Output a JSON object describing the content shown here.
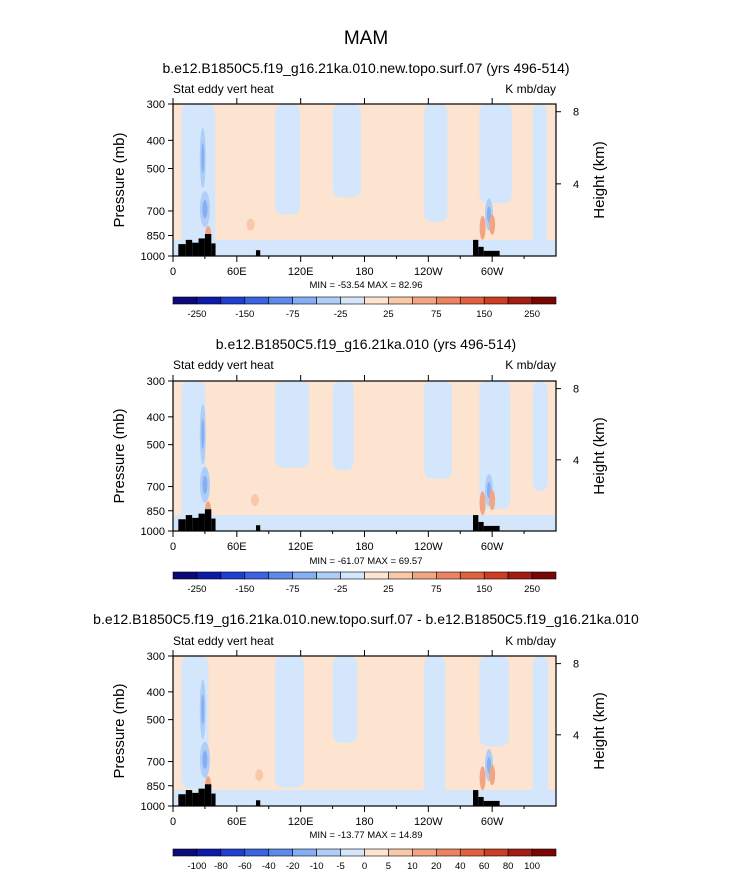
{
  "title": "MAM",
  "chart_data": [
    {
      "type": "heatmap",
      "title": "b.e12.B1850C5.f19_g16.21ka.010.new.topo.surf.07 (yrs 496-514)",
      "left_label": "Stat eddy vert heat",
      "right_label": "K mb/day",
      "ylabel": "Pressure (mb)",
      "ylabel_right": "Height (km)",
      "x_ticks": [
        "0",
        "60E",
        "120E",
        "180",
        "120W",
        "60W"
      ],
      "x_tick_lons": [
        0,
        60,
        120,
        180,
        240,
        300
      ],
      "x_range": [
        0,
        360
      ],
      "y_ticks": [
        "300",
        "400",
        "500",
        "700",
        "850",
        "1000"
      ],
      "y_tick_values": [
        300,
        400,
        500,
        700,
        850,
        1000
      ],
      "y_range": [
        300,
        1000
      ],
      "y_scale": "log",
      "height_ticks": [
        "8",
        "4"
      ],
      "height_tick_km": [
        8,
        4
      ],
      "stats": "MIN = -53.54  MAX =  82.96",
      "min": -53.54,
      "max": 82.96,
      "colorbar_labels": [
        "-250",
        "-150",
        "-75",
        "-25",
        "25",
        "75",
        "150",
        "250"
      ],
      "colorbar_levels": [
        -300,
        -250,
        -200,
        -150,
        -100,
        -75,
        -50,
        -25,
        0,
        25,
        50,
        75,
        100,
        150,
        200,
        250,
        300
      ]
    },
    {
      "type": "heatmap",
      "title": "b.e12.B1850C5.f19_g16.21ka.010 (yrs 496-514)",
      "left_label": "Stat eddy vert heat",
      "right_label": "K mb/day",
      "ylabel": "Pressure (mb)",
      "ylabel_right": "Height (km)",
      "x_ticks": [
        "0",
        "60E",
        "120E",
        "180",
        "120W",
        "60W"
      ],
      "x_tick_lons": [
        0,
        60,
        120,
        180,
        240,
        300
      ],
      "x_range": [
        0,
        360
      ],
      "y_ticks": [
        "300",
        "400",
        "500",
        "700",
        "850",
        "1000"
      ],
      "y_tick_values": [
        300,
        400,
        500,
        700,
        850,
        1000
      ],
      "y_range": [
        300,
        1000
      ],
      "y_scale": "log",
      "height_ticks": [
        "8",
        "4"
      ],
      "height_tick_km": [
        8,
        4
      ],
      "stats": "MIN = -61.07  MAX =  69.57",
      "min": -61.07,
      "max": 69.57,
      "colorbar_labels": [
        "-250",
        "-150",
        "-75",
        "-25",
        "25",
        "75",
        "150",
        "250"
      ],
      "colorbar_levels": [
        -300,
        -250,
        -200,
        -150,
        -100,
        -75,
        -50,
        -25,
        0,
        25,
        50,
        75,
        100,
        150,
        200,
        250,
        300
      ]
    },
    {
      "type": "heatmap",
      "title": "b.e12.B1850C5.f19_g16.21ka.010.new.topo.surf.07 - b.e12.B1850C5.f19_g16.21ka.010",
      "left_label": "Stat eddy vert heat",
      "right_label": "K mb/day",
      "ylabel": "Pressure (mb)",
      "ylabel_right": "Height (km)",
      "x_ticks": [
        "0",
        "60E",
        "120E",
        "180",
        "120W",
        "60W"
      ],
      "x_tick_lons": [
        0,
        60,
        120,
        180,
        240,
        300
      ],
      "x_range": [
        0,
        360
      ],
      "y_ticks": [
        "300",
        "400",
        "500",
        "700",
        "850",
        "1000"
      ],
      "y_tick_values": [
        300,
        400,
        500,
        700,
        850,
        1000
      ],
      "y_range": [
        300,
        1000
      ],
      "y_scale": "log",
      "height_ticks": [
        "8",
        "4"
      ],
      "height_tick_km": [
        8,
        4
      ],
      "stats": "MIN = -13.77  MAX =  14.89",
      "min": -13.77,
      "max": 14.89,
      "colorbar_labels": [
        "-100",
        "-80",
        "-60",
        "-40",
        "-20",
        "-10",
        "-5",
        "0",
        "5",
        "10",
        "20",
        "40",
        "60",
        "80",
        "100"
      ],
      "colorbar_levels": [
        -120,
        -100,
        -80,
        -60,
        -40,
        -20,
        -10,
        -5,
        0,
        5,
        10,
        20,
        40,
        60,
        80,
        100,
        120
      ]
    }
  ],
  "colors": {
    "neg": [
      "#0a0a7a",
      "#0d1ca8",
      "#1f3fd0",
      "#3a63e0",
      "#5d89ea",
      "#86aef2",
      "#aecdf7",
      "#d3e6fb"
    ],
    "pos": [
      "#fde4d0",
      "#f9c8a9",
      "#f3a583",
      "#ec8360",
      "#e0603f",
      "#cc3d24",
      "#a41d13",
      "#7a0505"
    ],
    "topography": "#000000"
  }
}
